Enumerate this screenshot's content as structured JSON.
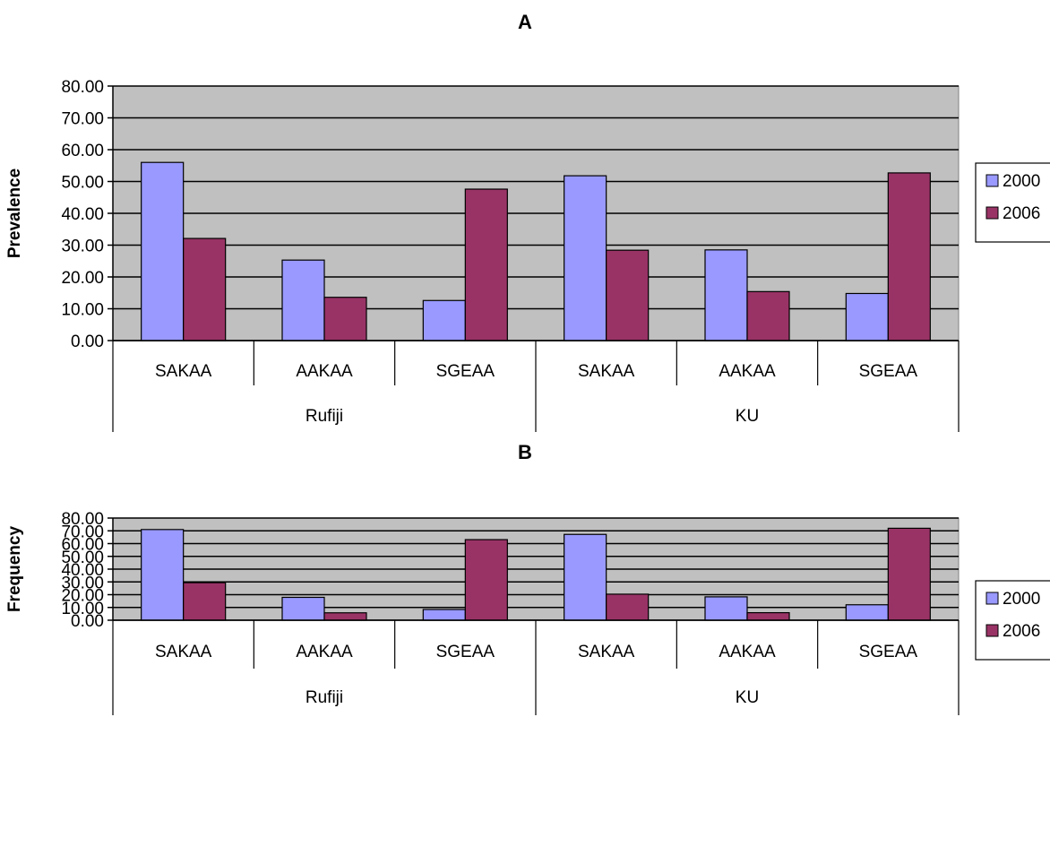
{
  "colors": {
    "series_2000": "#9999ff",
    "series_2006": "#993366",
    "plot_area": "#c0c0c0",
    "gridline": "#000000",
    "background": "#ffffff"
  },
  "chart_data": [
    {
      "type": "bar",
      "title": "A",
      "ylabel": "Prevalence",
      "xlabel": "",
      "ylim": [
        0,
        80
      ],
      "ytick_step": 10,
      "ytick_labels": [
        "0.00",
        "10.00",
        "20.00",
        "30.00",
        "40.00",
        "50.00",
        "60.00",
        "70.00",
        "80.00"
      ],
      "grid": true,
      "legend_position": "right",
      "categories": [
        "SAKAA",
        "AAKAA",
        "SGEAA",
        "SAKAA",
        "AAKAA",
        "SGEAA"
      ],
      "groups": [
        {
          "label": "Rufiji",
          "span": 3
        },
        {
          "label": "KU",
          "span": 3
        }
      ],
      "series": [
        {
          "name": "2000",
          "color": "#9999ff",
          "values": [
            56.0,
            25.3,
            12.6,
            51.8,
            28.5,
            14.8
          ]
        },
        {
          "name": "2006",
          "color": "#993366",
          "values": [
            32.1,
            13.6,
            47.6,
            28.4,
            15.4,
            52.7
          ]
        }
      ]
    },
    {
      "type": "bar",
      "title": "B",
      "ylabel": "Frequency",
      "xlabel": "",
      "ylim": [
        0,
        80
      ],
      "ytick_step": 10,
      "ytick_labels": [
        "0.00",
        "10.00",
        "20.00",
        "30.00",
        "40.00",
        "50.00",
        "60.00",
        "70.00",
        "80.00"
      ],
      "grid": true,
      "legend_position": "right",
      "categories": [
        "SAKAA",
        "AAKAA",
        "SGEAA",
        "SAKAA",
        "AAKAA",
        "SGEAA"
      ],
      "groups": [
        {
          "label": "Rufiji",
          "span": 3
        },
        {
          "label": "KU",
          "span": 3
        }
      ],
      "series": [
        {
          "name": "2000",
          "color": "#9999ff",
          "values": [
            71.0,
            17.9,
            8.4,
            67.2,
            18.3,
            12.1
          ]
        },
        {
          "name": "2006",
          "color": "#993366",
          "values": [
            29.4,
            5.8,
            63.1,
            20.4,
            5.9,
            72.0
          ]
        }
      ]
    }
  ]
}
